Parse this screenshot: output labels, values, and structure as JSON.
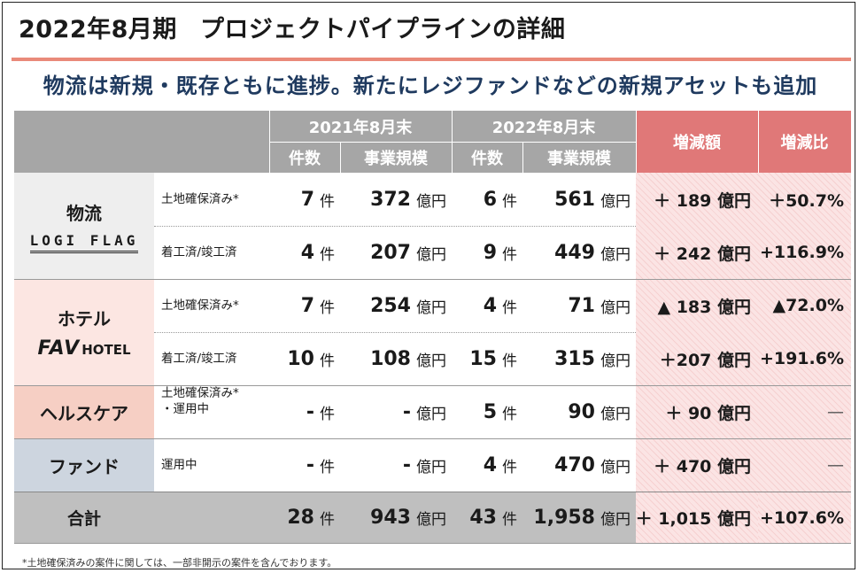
{
  "title": {
    "period": "2022年8月期",
    "main": "プロジェクトパイプラインの詳細"
  },
  "subtitle": "物流は新規・既存ともに進捗。新たにレジファンドなどの新規アセットも追加",
  "header": {
    "group_2021": "2021年8月末",
    "group_2022": "2022年8月末",
    "count": "件数",
    "scale": "事業規模",
    "change_amount": "増減額",
    "change_ratio": "増減比"
  },
  "units": {
    "count": "件",
    "yen": "億円"
  },
  "categories": [
    {
      "name": "物流",
      "logo": "LOGI FLAG",
      "bg": "#eeeeee"
    },
    {
      "name": "ホテル",
      "logo_fav": "FAV",
      "logo_hotel": "HOTEL",
      "bg": "#fce6e2"
    },
    {
      "name": "ヘルスケア",
      "bg": "#f6cfc4"
    },
    {
      "name": "ファンド",
      "bg": "#cdd5df"
    }
  ],
  "rows": [
    {
      "label": "土地確保済み*",
      "c21": "7",
      "s21": "372",
      "c22": "6",
      "s22": "561",
      "chg": "＋ 189 億円",
      "ratio": "＋50.7%"
    },
    {
      "label": "着工済/竣工済",
      "c21": "4",
      "s21": "207",
      "c22": "9",
      "s22": "449",
      "chg": "＋ 242 億円",
      "ratio": "+116.9%"
    },
    {
      "label": "土地確保済み*",
      "c21": "7",
      "s21": "254",
      "c22": "4",
      "s22": "71",
      "chg": "▲ 183 億円",
      "ratio": "▲72.0%"
    },
    {
      "label": "着工済/竣工済",
      "c21": "10",
      "s21": "108",
      "c22": "15",
      "s22": "315",
      "chg": "＋207 億円",
      "ratio": "+191.6%"
    },
    {
      "label": "土地確保済み*",
      "label2": "・運用中",
      "c21": "-",
      "s21": "-",
      "c22": "5",
      "s22": "90",
      "chg": "＋ 90 億円",
      "ratio": "—"
    },
    {
      "label": "運用中",
      "c21": "-",
      "s21": "-",
      "c22": "4",
      "s22": "470",
      "chg": "＋ 470 億円",
      "ratio": "—"
    }
  ],
  "total": {
    "label": "合計",
    "c21": "28",
    "s21": "943",
    "c22": "43",
    "s22": "1,958",
    "chg": "＋ 1,015 億円",
    "ratio": "+107.6%"
  },
  "footnote": "*土地確保済みの案件に関しては、一部非開示の案件を含んでおります。"
}
